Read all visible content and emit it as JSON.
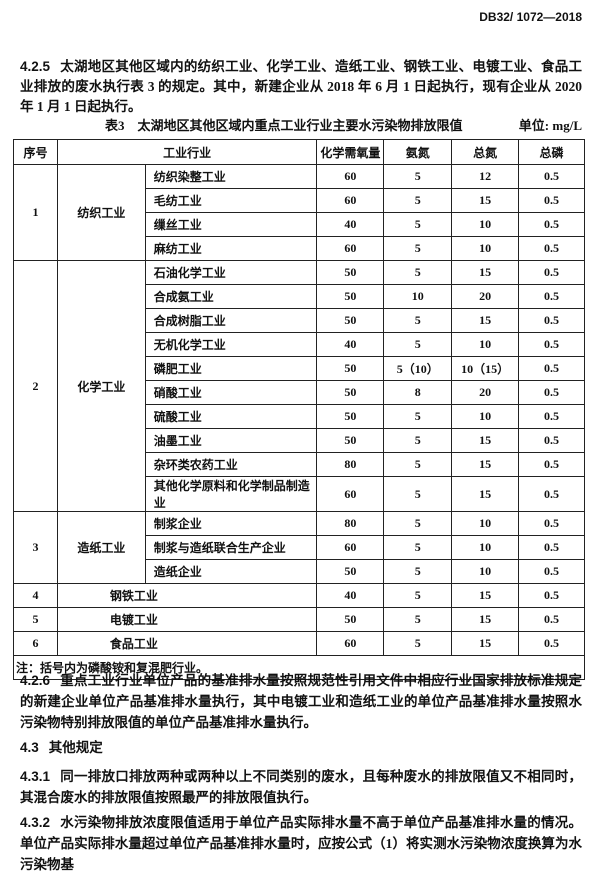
{
  "header": {
    "doc_code": "DB32/ 1072—2018"
  },
  "p425": {
    "num": "4.2.5",
    "text": "太湖地区其他区域内的纺织工业、化学工业、造纸工业、钢铁工业、电镀工业、食品工业排放的废水执行表 3 的规定。其中，新建企业从 2018 年 6 月 1 日起执行，现有企业从 2020 年 1 月 1 日起执行。"
  },
  "table": {
    "title": "表3　太湖地区其他区域内重点工业行业主要水污染物排放限值",
    "unit": "单位: mg/L",
    "headers": [
      "序号",
      "工业行业",
      "化学需氧量",
      "氨氮",
      "总氮",
      "总磷"
    ],
    "groups": [
      {
        "no": "1",
        "name": "纺织工业",
        "rows": [
          [
            "纺织染整工业",
            "60",
            "5",
            "12",
            "0.5"
          ],
          [
            "毛纺工业",
            "60",
            "5",
            "15",
            "0.5"
          ],
          [
            "缫丝工业",
            "40",
            "5",
            "10",
            "0.5"
          ],
          [
            "麻纺工业",
            "60",
            "5",
            "10",
            "0.5"
          ]
        ]
      },
      {
        "no": "2",
        "name": "化学工业",
        "rows": [
          [
            "石油化学工业",
            "50",
            "5",
            "15",
            "0.5"
          ],
          [
            "合成氨工业",
            "50",
            "10",
            "20",
            "0.5"
          ],
          [
            "合成树脂工业",
            "50",
            "5",
            "15",
            "0.5"
          ],
          [
            "无机化学工业",
            "40",
            "5",
            "10",
            "0.5"
          ],
          [
            "磷肥工业",
            "50",
            "5（10）",
            "10（15）",
            "0.5"
          ],
          [
            "硝酸工业",
            "50",
            "8",
            "20",
            "0.5"
          ],
          [
            "硫酸工业",
            "50",
            "5",
            "10",
            "0.5"
          ],
          [
            "油墨工业",
            "50",
            "5",
            "15",
            "0.5"
          ],
          [
            "杂环类农药工业",
            "80",
            "5",
            "15",
            "0.5"
          ],
          [
            "其他化学原料和化学制品制造业",
            "60",
            "5",
            "15",
            "0.5"
          ]
        ]
      },
      {
        "no": "3",
        "name": "造纸工业",
        "rows": [
          [
            "制浆企业",
            "80",
            "5",
            "10",
            "0.5"
          ],
          [
            "制浆与造纸联合生产企业",
            "60",
            "5",
            "10",
            "0.5"
          ],
          [
            "造纸企业",
            "50",
            "5",
            "10",
            "0.5"
          ]
        ]
      }
    ],
    "singles": [
      {
        "no": "4",
        "name": "钢铁工业",
        "values": [
          "40",
          "5",
          "15",
          "0.5"
        ]
      },
      {
        "no": "5",
        "name": "电镀工业",
        "values": [
          "50",
          "5",
          "15",
          "0.5"
        ]
      },
      {
        "no": "6",
        "name": "食品工业",
        "values": [
          "60",
          "5",
          "15",
          "0.5"
        ]
      }
    ],
    "note": "注：括号内为磷酸铵和复混肥行业。"
  },
  "p426": {
    "num": "4.2.6",
    "text": "重点工业行业单位产品的基准排水量按照规范性引用文件中相应行业国家排放标准规定的新建企业单位产品基准排水量执行，其中电镀工业和造纸工业的单位产品基准排水量按照水污染物特别排放限值的单位产品基准排水量执行。"
  },
  "s43": {
    "num": "4.3",
    "text": "其他规定"
  },
  "p431": {
    "num": "4.3.1",
    "text": "同一排放口排放两种或两种以上不同类别的废水，且每种废水的排放限值又不相同时，其混合废水的排放限值按照最严的排放限值执行。"
  },
  "p432": {
    "num": "4.3.2",
    "text": "水污染物排放浓度限值适用于单位产品实际排水量不高于单位产品基准排水量的情况。单位产品实际排水量超过单位产品基准排水量时，应按公式（1）将实测水污染物浓度换算为水污染物基"
  }
}
